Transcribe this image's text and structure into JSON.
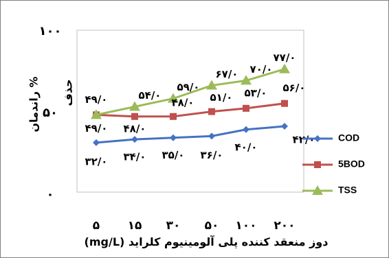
{
  "chart_data": {
    "type": "line",
    "categories": [
      "۵",
      "۱۵",
      "۳۰",
      "۵۰",
      "۱۰۰",
      "۲۰۰"
    ],
    "xlabel": "دوز منعقد کننده پلی آلومینیوم کلراید (mg/L)",
    "ylabel_line1": "% راندمان",
    "ylabel_line2": "حذف",
    "yticks": [
      "۰",
      "۵۰",
      "۱۰۰"
    ],
    "ylim": [
      0,
      100
    ],
    "legend_position": "right",
    "grid": false,
    "series": [
      {
        "name": "COD",
        "color": "#4472c4",
        "marker": "diamond",
        "values": [
          32,
          34,
          35,
          36,
          40,
          42
        ],
        "labels": [
          "۳۲/۰",
          "۳۴/۰",
          "۳۵/۰",
          "۳۶/۰",
          "۴۰/۰",
          "۴۲/۰"
        ]
      },
      {
        "name": "5BOD",
        "color": "#c0504d",
        "marker": "square",
        "values": [
          49,
          48,
          48,
          51,
          53,
          56
        ],
        "labels": [
          "۴۹/۰",
          "۴۸/۰",
          "۴۸/۰",
          "۵۱/۰",
          "۵۳/۰",
          "۵۶/۰"
        ]
      },
      {
        "name": "TSS",
        "color": "#9bbb59",
        "marker": "triangle",
        "values": [
          49,
          54,
          59,
          67,
          70,
          77
        ],
        "labels": [
          "۴۹/۰",
          "۵۴/۰",
          "۵۹/۰",
          "۶۷/۰",
          "۷۰/۰",
          "۷۷/۰"
        ]
      }
    ]
  }
}
